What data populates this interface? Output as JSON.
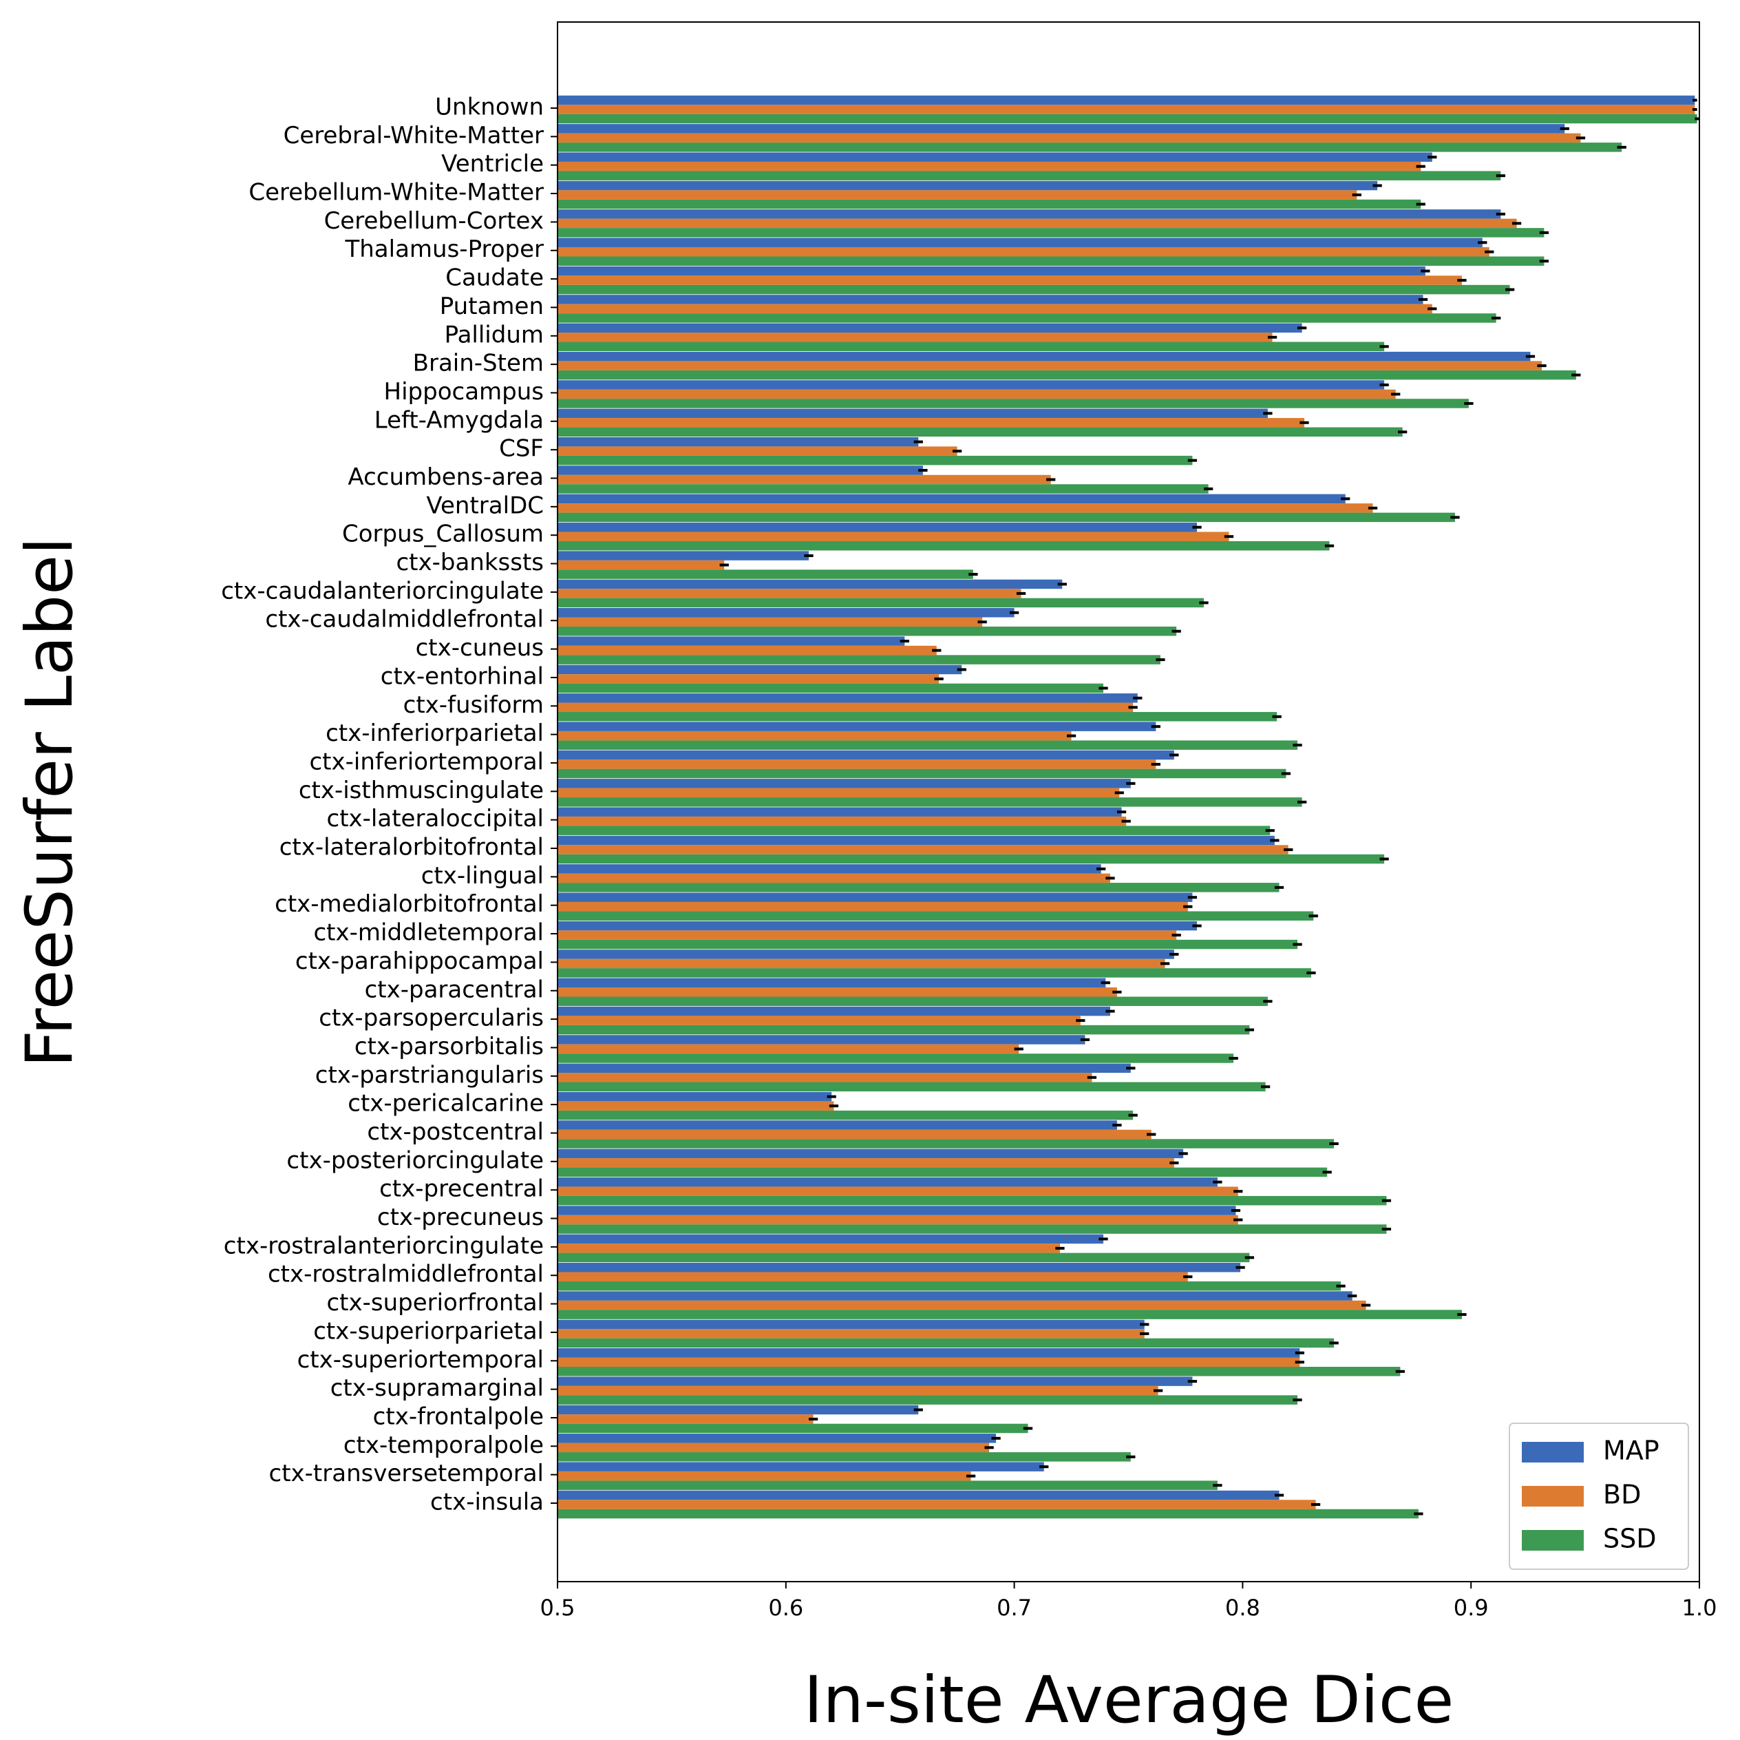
{
  "chart_data": {
    "type": "barh",
    "x_label": "In-site Average Dice",
    "y_label": "FreeSurfer Label",
    "categories": [
      "Unknown",
      "Cerebral-White-Matter",
      "Ventricle",
      "Cerebellum-White-Matter",
      "Cerebellum-Cortex",
      "Thalamus-Proper",
      "Caudate",
      "Putamen",
      "Pallidum",
      "Brain-Stem",
      "Hippocampus",
      "Left-Amygdala",
      "CSF",
      "Accumbens-area",
      "VentralDC",
      "Corpus_Callosum",
      "ctx-bankssts",
      "ctx-caudalanteriorcingulate",
      "ctx-caudalmiddlefrontal",
      "ctx-cuneus",
      "ctx-entorhinal",
      "ctx-fusiform",
      "ctx-inferiorparietal",
      "ctx-inferiortemporal",
      "ctx-isthmuscingulate",
      "ctx-lateraloccipital",
      "ctx-lateralorbitofrontal",
      "ctx-lingual",
      "ctx-medialorbitofrontal",
      "ctx-middletemporal",
      "ctx-parahippocampal",
      "ctx-paracentral",
      "ctx-parsopercularis",
      "ctx-parsorbitalis",
      "ctx-parstriangularis",
      "ctx-pericalcarine",
      "ctx-postcentral",
      "ctx-posteriorcingulate",
      "ctx-precentral",
      "ctx-precuneus",
      "ctx-rostralanteriorcingulate",
      "ctx-rostralmiddlefrontal",
      "ctx-superiorfrontal",
      "ctx-superiorparietal",
      "ctx-superiortemporal",
      "ctx-supramarginal",
      "ctx-frontalpole",
      "ctx-temporalpole",
      "ctx-transversetemporal",
      "ctx-insula"
    ],
    "series": [
      {
        "name": "MAP",
        "color": "#3b6bb8",
        "values": [
          0.998,
          0.941,
          0.883,
          0.859,
          0.913,
          0.905,
          0.88,
          0.879,
          0.826,
          0.926,
          0.862,
          0.811,
          0.658,
          0.66,
          0.845,
          0.78,
          0.61,
          0.721,
          0.7,
          0.652,
          0.677,
          0.754,
          0.762,
          0.77,
          0.751,
          0.747,
          0.814,
          0.738,
          0.778,
          0.78,
          0.77,
          0.74,
          0.742,
          0.731,
          0.751,
          0.62,
          0.745,
          0.774,
          0.789,
          0.797,
          0.739,
          0.799,
          0.848,
          0.757,
          0.825,
          0.778,
          0.658,
          0.692,
          0.713,
          0.816
        ],
        "errors": [
          0.001,
          0.002,
          0.002,
          0.002,
          0.002,
          0.002,
          0.002,
          0.002,
          0.002,
          0.002,
          0.002,
          0.002,
          0.002,
          0.002,
          0.002,
          0.002,
          0.002,
          0.002,
          0.002,
          0.002,
          0.002,
          0.002,
          0.002,
          0.002,
          0.002,
          0.002,
          0.002,
          0.002,
          0.002,
          0.002,
          0.002,
          0.002,
          0.002,
          0.002,
          0.002,
          0.002,
          0.002,
          0.002,
          0.002,
          0.002,
          0.002,
          0.002,
          0.002,
          0.002,
          0.002,
          0.002,
          0.002,
          0.002,
          0.002,
          0.002
        ]
      },
      {
        "name": "BD",
        "color": "#dd7c30",
        "values": [
          0.998,
          0.948,
          0.878,
          0.85,
          0.92,
          0.908,
          0.896,
          0.883,
          0.813,
          0.931,
          0.867,
          0.827,
          0.675,
          0.716,
          0.857,
          0.794,
          0.573,
          0.703,
          0.686,
          0.666,
          0.667,
          0.752,
          0.725,
          0.762,
          0.746,
          0.749,
          0.82,
          0.742,
          0.776,
          0.771,
          0.766,
          0.745,
          0.729,
          0.702,
          0.734,
          0.621,
          0.76,
          0.77,
          0.798,
          0.798,
          0.72,
          0.776,
          0.854,
          0.757,
          0.825,
          0.763,
          0.612,
          0.689,
          0.681,
          0.832
        ],
        "errors": [
          0.001,
          0.002,
          0.002,
          0.002,
          0.002,
          0.002,
          0.002,
          0.002,
          0.002,
          0.002,
          0.002,
          0.002,
          0.002,
          0.002,
          0.002,
          0.002,
          0.002,
          0.002,
          0.002,
          0.002,
          0.002,
          0.002,
          0.002,
          0.002,
          0.002,
          0.002,
          0.002,
          0.002,
          0.002,
          0.002,
          0.002,
          0.002,
          0.002,
          0.002,
          0.002,
          0.002,
          0.002,
          0.002,
          0.002,
          0.002,
          0.002,
          0.002,
          0.002,
          0.002,
          0.002,
          0.002,
          0.002,
          0.002,
          0.002,
          0.002
        ]
      },
      {
        "name": "SSD",
        "color": "#3d9a52",
        "values": [
          0.999,
          0.966,
          0.913,
          0.878,
          0.932,
          0.932,
          0.917,
          0.911,
          0.862,
          0.946,
          0.899,
          0.87,
          0.778,
          0.785,
          0.893,
          0.838,
          0.682,
          0.783,
          0.771,
          0.764,
          0.739,
          0.815,
          0.824,
          0.819,
          0.826,
          0.812,
          0.862,
          0.816,
          0.831,
          0.824,
          0.83,
          0.811,
          0.803,
          0.796,
          0.81,
          0.752,
          0.84,
          0.837,
          0.863,
          0.863,
          0.803,
          0.843,
          0.896,
          0.84,
          0.869,
          0.824,
          0.706,
          0.751,
          0.789,
          0.877
        ],
        "errors": [
          0.001,
          0.002,
          0.002,
          0.002,
          0.002,
          0.002,
          0.002,
          0.002,
          0.002,
          0.002,
          0.002,
          0.002,
          0.002,
          0.002,
          0.002,
          0.002,
          0.002,
          0.002,
          0.002,
          0.002,
          0.002,
          0.002,
          0.002,
          0.002,
          0.002,
          0.002,
          0.002,
          0.002,
          0.002,
          0.002,
          0.002,
          0.002,
          0.002,
          0.002,
          0.002,
          0.002,
          0.002,
          0.002,
          0.002,
          0.002,
          0.002,
          0.002,
          0.002,
          0.002,
          0.002,
          0.002,
          0.002,
          0.002,
          0.002,
          0.002
        ]
      }
    ],
    "xlim": [
      0.5,
      1.0
    ],
    "xticks": [
      0.5,
      0.6,
      0.7,
      0.8,
      0.9,
      {
        "value": 1.0,
        "label": "1.0"
      }
    ],
    "legend": "lower right",
    "error_color": "#000000"
  }
}
